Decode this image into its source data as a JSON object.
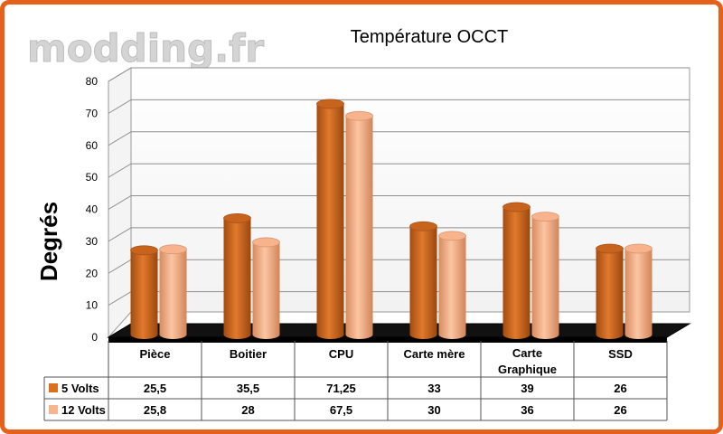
{
  "watermark": "modding.fr",
  "chart_data": {
    "type": "bar",
    "title": "Température OCCT",
    "ylabel": "Degrés",
    "xlabel": "",
    "ylim": [
      0,
      80
    ],
    "yticks": [
      0,
      10,
      20,
      30,
      40,
      50,
      60,
      70,
      80
    ],
    "categories": [
      "Pièce",
      "Boitier",
      "CPU",
      "Carte mère",
      "Carte Graphique",
      "SSD"
    ],
    "series": [
      {
        "name": "5 Volts",
        "color": "#d9701e",
        "values": [
          25.5,
          35.5,
          71.25,
          33,
          39,
          26
        ],
        "labels": [
          "25,5",
          "35,5",
          "71,25",
          "33",
          "39",
          "26"
        ]
      },
      {
        "name": "12 Volts",
        "color": "#f7b58e",
        "values": [
          25.8,
          28,
          67.5,
          30,
          36,
          26
        ],
        "labels": [
          "25,8",
          "28",
          "67,5",
          "30",
          "36",
          "26"
        ]
      }
    ],
    "grid": true,
    "data_table": true
  }
}
